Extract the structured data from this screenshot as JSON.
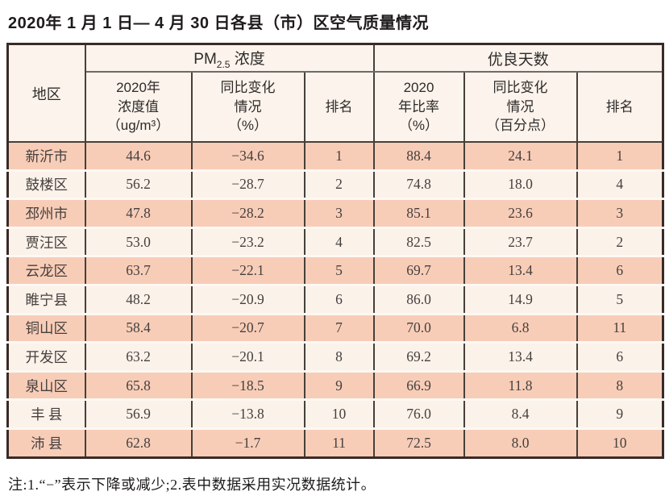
{
  "title": "2020年 1 月 1 日— 4 月 30 日各县（市）区空气质量情况",
  "note": "注:1.“−”表示下降或减少;2.表中数据采用实况数据统计。",
  "colors": {
    "row_odd": "#f8cdb8",
    "row_even": "#fbf2ea",
    "header_bg": "#fbf3ec",
    "row_gap": "#fdf8f3",
    "outer_border": "#3a2b26",
    "inner_border": "#46403a",
    "group_underline": "#6f6b66",
    "cell_text": "#45403d",
    "header_text": "#2e2b29",
    "title_text": "#1e1c1b"
  },
  "table": {
    "region_header": "地区",
    "pm_group": {
      "prefix": "PM",
      "sub": "2.5",
      "suffix": " 浓度"
    },
    "days_group_label": "优良天数",
    "subheaders": [
      {
        "lines": [
          "2020年",
          "浓度值",
          "（ug/m³）"
        ]
      },
      {
        "lines": [
          "同比变化",
          "情况",
          "（%）"
        ]
      },
      {
        "lines": [
          "排名"
        ]
      },
      {
        "lines": [
          "2020",
          "年比率",
          "（%）"
        ]
      },
      {
        "lines": [
          "同比变化",
          "情况",
          "（百分点）"
        ]
      },
      {
        "lines": [
          "排名"
        ]
      }
    ],
    "rows": [
      {
        "region": "新沂市",
        "pm_value": "44.6",
        "pm_change": "−34.6",
        "pm_rank": "1",
        "days_ratio": "88.4",
        "days_change": "24.1",
        "days_rank": "1"
      },
      {
        "region": "鼓楼区",
        "pm_value": "56.2",
        "pm_change": "−28.7",
        "pm_rank": "2",
        "days_ratio": "74.8",
        "days_change": "18.0",
        "days_rank": "4"
      },
      {
        "region": "邳州市",
        "pm_value": "47.8",
        "pm_change": "−28.2",
        "pm_rank": "3",
        "days_ratio": "85.1",
        "days_change": "23.6",
        "days_rank": "3"
      },
      {
        "region": "贾汪区",
        "pm_value": "53.0",
        "pm_change": "−23.2",
        "pm_rank": "4",
        "days_ratio": "82.5",
        "days_change": "23.7",
        "days_rank": "2"
      },
      {
        "region": "云龙区",
        "pm_value": "63.7",
        "pm_change": "−22.1",
        "pm_rank": "5",
        "days_ratio": "69.7",
        "days_change": "13.4",
        "days_rank": "6"
      },
      {
        "region": "睢宁县",
        "pm_value": "48.2",
        "pm_change": "−20.9",
        "pm_rank": "6",
        "days_ratio": "86.0",
        "days_change": "14.9",
        "days_rank": "5"
      },
      {
        "region": "铜山区",
        "pm_value": "58.4",
        "pm_change": "−20.7",
        "pm_rank": "7",
        "days_ratio": "70.0",
        "days_change": "6.8",
        "days_rank": "11"
      },
      {
        "region": "开发区",
        "pm_value": "63.2",
        "pm_change": "−20.1",
        "pm_rank": "8",
        "days_ratio": "69.2",
        "days_change": "13.4",
        "days_rank": "6"
      },
      {
        "region": "泉山区",
        "pm_value": "65.8",
        "pm_change": "−18.5",
        "pm_rank": "9",
        "days_ratio": "66.9",
        "days_change": "11.8",
        "days_rank": "8"
      },
      {
        "region": "丰 县",
        "pm_value": "56.9",
        "pm_change": "−13.8",
        "pm_rank": "10",
        "days_ratio": "76.0",
        "days_change": "8.4",
        "days_rank": "9"
      },
      {
        "region": "沛 县",
        "pm_value": "62.8",
        "pm_change": "−1.7",
        "pm_rank": "11",
        "days_ratio": "72.5",
        "days_change": "8.0",
        "days_rank": "10"
      }
    ]
  }
}
